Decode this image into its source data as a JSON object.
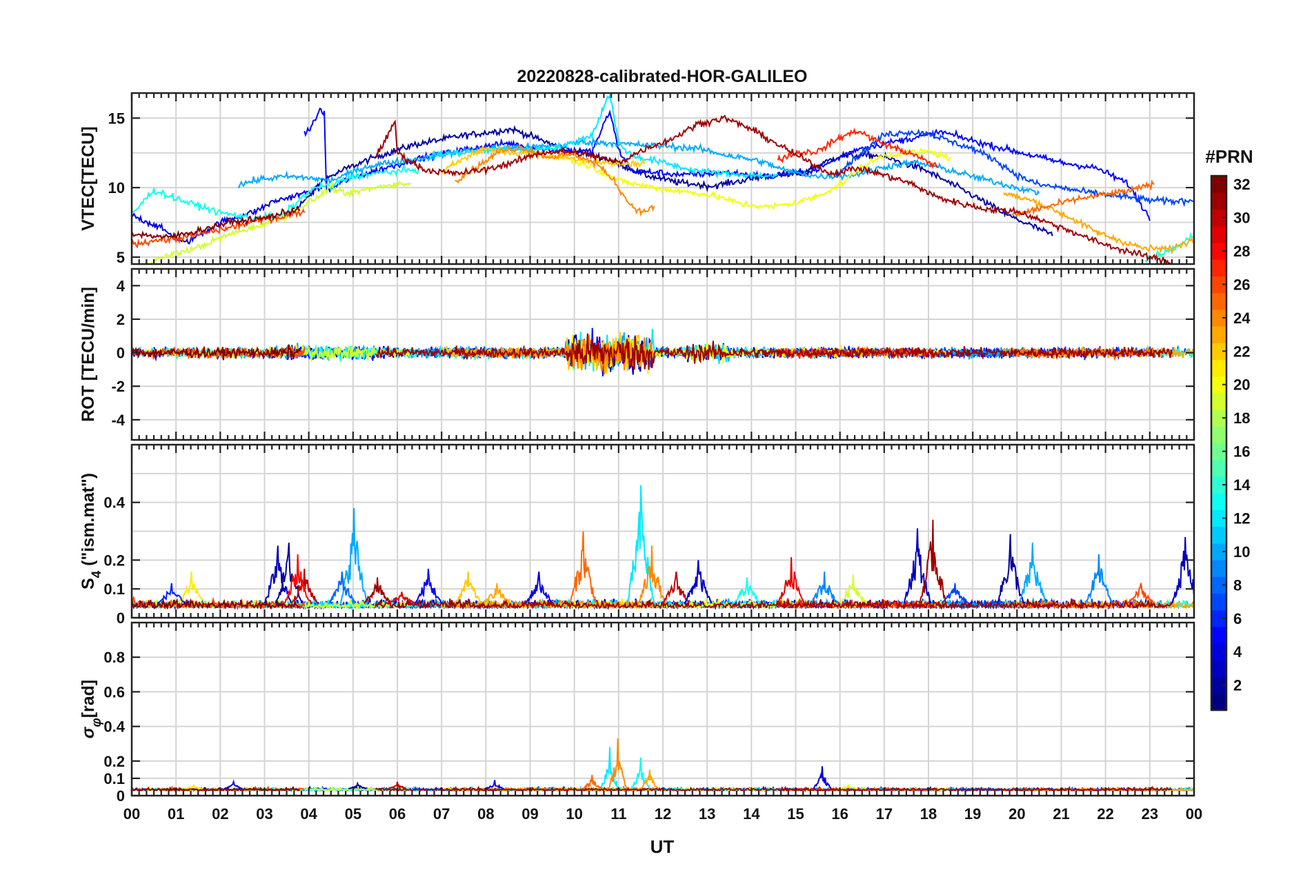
{
  "chart_data": {
    "type": "line",
    "title": "20220828-calibrated-HOR-GALILEO",
    "xlabel": "UT",
    "x_ticks": [
      "00",
      "01",
      "02",
      "03",
      "04",
      "05",
      "06",
      "07",
      "08",
      "09",
      "10",
      "11",
      "12",
      "13",
      "14",
      "15",
      "16",
      "17",
      "18",
      "19",
      "20",
      "21",
      "22",
      "23",
      "00"
    ],
    "xlim": [
      0,
      24
    ],
    "panels": [
      {
        "id": "vtec",
        "ylabel": "VTEC[TECU]",
        "ylim": [
          4.5,
          16.8
        ],
        "yticks": [
          5,
          10,
          15
        ],
        "ytick_labels": [
          "5",
          "10",
          "15"
        ],
        "grid_y": [
          5,
          7.5,
          10,
          12.5,
          15
        ]
      },
      {
        "id": "rot",
        "ylabel": "ROT [TECU/min]",
        "ylim": [
          -5.2,
          5.0
        ],
        "yticks": [
          -4,
          -2,
          0,
          2,
          4
        ],
        "ytick_labels": [
          "-4",
          "-2",
          "0",
          "2",
          "4"
        ],
        "grid_y": [
          -4,
          -2,
          0,
          2,
          4
        ]
      },
      {
        "id": "s4",
        "ylabel_main": "S",
        "ylabel_sub": "4",
        "ylabel_rest": " (\"ism.mat\")",
        "ylim": [
          0,
          0.6
        ],
        "yticks": [
          0,
          0.1,
          0.2,
          0.4
        ],
        "ytick_labels": [
          "0",
          "0.1",
          "0.2",
          "0.4"
        ],
        "grid_y": [
          0.1,
          0.2,
          0.3,
          0.4,
          0.5
        ]
      },
      {
        "id": "sigma",
        "ylabel_main": "σ",
        "ylabel_sub": "φ",
        "ylabel_rest": "[rad]",
        "ylim": [
          0,
          1.0
        ],
        "yticks": [
          0,
          0.1,
          0.2,
          0.4,
          0.6,
          0.8
        ],
        "ytick_labels": [
          "0",
          "0.1",
          "0.2",
          "0.4",
          "0.6",
          "0.8"
        ],
        "grid_y": [
          0.1,
          0.2,
          0.4,
          0.6,
          0.8
        ]
      }
    ],
    "series": [
      {
        "prn": 2,
        "x": [
          3.4,
          4.0,
          4.3,
          4.8,
          5.5,
          6.4,
          7.4,
          8.6,
          9.6,
          10.8,
          11.6,
          12.3,
          13.1,
          14.3,
          15.1,
          16.0,
          16.9,
          17.9,
          18.8,
          19.8,
          20.8
        ],
        "vtec": [
          7.8,
          9.3,
          10.5,
          11.3,
          12.2,
          13.1,
          13.7,
          14.2,
          13.0,
          12.0,
          10.9,
          10.4,
          10.1,
          10.8,
          11.0,
          12.3,
          12.3,
          11.3,
          9.8,
          8.0,
          6.6
        ]
      },
      {
        "prn": 4,
        "x": [
          0.0,
          0.6,
          1.2,
          2.0,
          2.8,
          3.2,
          3.8,
          4.3
        ],
        "vtec": [
          8.0,
          7.2,
          6.0,
          7.5,
          8.3,
          9.0,
          9.5,
          10.0
        ]
      },
      {
        "prn": 5,
        "x": [
          3.9,
          4.1,
          4.25,
          4.35,
          4.4,
          4.8,
          5.6,
          6.5,
          7.6,
          8.5,
          9.4,
          10.4,
          10.8,
          11.0,
          11.3,
          11.8,
          12.5,
          13.4,
          14.4,
          15.4,
          16.4,
          17.4,
          18.3,
          19.2,
          20.1,
          21.0,
          21.8,
          22.5,
          23.0
        ],
        "vtec": [
          13.8,
          14.6,
          15.6,
          15.4,
          9.7,
          10.5,
          11.3,
          12.1,
          12.8,
          13.2,
          12.7,
          12.6,
          15.5,
          12.7,
          11.2,
          11.1,
          10.9,
          11.1,
          10.8,
          11.2,
          12.8,
          13.4,
          14.0,
          13.2,
          12.5,
          11.8,
          11.4,
          10.3,
          7.8
        ]
      },
      {
        "prn": 7,
        "x": [
          15.9,
          16.5,
          17.0,
          17.5,
          18.0,
          18.5,
          19.0,
          19.5,
          20.0,
          20.5,
          21.0,
          21.5,
          22.0,
          22.5,
          23.0,
          23.5,
          24.0
        ],
        "vtec": [
          11.0,
          12.5,
          13.8,
          14.0,
          13.9,
          13.3,
          12.8,
          12.0,
          10.9,
          10.2,
          10.0,
          9.7,
          9.5,
          9.3,
          9.1,
          9.0,
          9.1
        ]
      },
      {
        "prn": 10,
        "x": [
          2.4,
          2.9,
          3.5,
          4.0,
          4.5,
          4.9,
          5.3,
          5.8,
          6.3,
          6.6,
          7.2,
          8.0,
          8.9,
          9.6,
          10.2,
          10.8,
          11.3,
          12.0,
          12.8,
          13.5,
          14.2,
          14.8,
          15.5,
          16.3,
          17.0,
          17.7,
          18.3,
          19.0,
          19.5,
          20.0,
          20.5
        ],
        "vtec": [
          10.2,
          10.6,
          10.8,
          10.7,
          10.5,
          11.0,
          11.5,
          11.8,
          12.0,
          12.1,
          12.5,
          12.8,
          12.9,
          13.0,
          13.3,
          13.2,
          13.1,
          13.0,
          12.8,
          12.3,
          11.9,
          11.2,
          10.8,
          10.9,
          11.5,
          11.8,
          11.4,
          10.8,
          10.4,
          10.0,
          9.6
        ]
      },
      {
        "prn": 12,
        "x": [
          6.7,
          7.5,
          8.3,
          9.0,
          9.8,
          10.4,
          10.8,
          10.9,
          11.0,
          11.3,
          12.0,
          12.6,
          13.3,
          14.0,
          14.6
        ],
        "vtec": [
          12.3,
          12.5,
          12.8,
          12.7,
          13.0,
          13.8,
          16.8,
          15.0,
          13.2,
          12.3,
          11.8,
          11.3,
          11.0,
          10.9,
          10.8
        ]
      },
      {
        "prn": 13,
        "x": [
          0.0,
          0.1,
          0.4,
          0.5,
          1.2,
          2.0,
          2.7,
          3.4,
          4.0,
          4.3,
          4.5,
          4.6,
          5.0,
          5.7,
          6.5
        ],
        "vtec": [
          8.2,
          8.4,
          9.5,
          9.8,
          9.0,
          8.2,
          7.8,
          8.0,
          9.7,
          10.2,
          10.0,
          10.3,
          10.8,
          11.1,
          11.3
        ]
      },
      {
        "prn": 14,
        "x": [
          22.9,
          23.4,
          23.7,
          24.0
        ],
        "vtec": [
          4.8,
          5.4,
          5.9,
          6.6
        ]
      },
      {
        "prn": 19,
        "x": [
          0.3,
          0.9,
          1.5,
          2.1,
          2.8,
          3.5,
          4.2,
          4.5,
          4.8,
          5.2,
          5.8,
          6.3
        ],
        "vtec": [
          4.5,
          5.2,
          5.7,
          6.5,
          7.2,
          8.0,
          9.3,
          10.1,
          9.5,
          9.8,
          10.2,
          10.3
        ]
      },
      {
        "prn": 20,
        "x": [
          9.9,
          10.4,
          11.0,
          11.6,
          12.2,
          12.8,
          13.3,
          13.8,
          14.4,
          15.0,
          15.5,
          16.0,
          16.5,
          17.0,
          17.5,
          18.0,
          18.5
        ],
        "vtec": [
          12.0,
          11.5,
          10.5,
          10.1,
          9.8,
          9.6,
          9.3,
          8.8,
          8.6,
          8.9,
          9.4,
          10.2,
          11.5,
          12.3,
          12.5,
          12.6,
          12.1
        ]
      },
      {
        "prn": 22,
        "x": [
          7.0,
          7.5,
          8.0,
          8.6,
          9.3,
          10.0,
          10.6,
          11.2,
          11.6
        ],
        "vtec": [
          11.0,
          12.2,
          12.8,
          12.5,
          12.3,
          12.1,
          11.8,
          11.7,
          11.8
        ]
      },
      {
        "prn": 23,
        "x": [
          19.7,
          20.4,
          21.1,
          21.8,
          22.4,
          22.9,
          23.5,
          24.0
        ],
        "vtec": [
          9.6,
          9.0,
          8.0,
          6.8,
          6.1,
          5.6,
          5.6,
          6.3
        ]
      },
      {
        "prn": 24,
        "x": [
          7.3,
          7.8,
          8.3,
          8.8,
          9.4,
          10.0,
          10.5,
          10.9,
          11.2,
          11.5,
          11.8
        ],
        "vtec": [
          10.5,
          11.5,
          12.6,
          12.9,
          12.2,
          12.4,
          11.7,
          10.5,
          9.0,
          8.2,
          8.6
        ]
      },
      {
        "prn": 25,
        "x": [
          19.9,
          20.4,
          20.9,
          21.4,
          22.0,
          22.6,
          23.1
        ],
        "vtec": [
          8.0,
          8.4,
          8.8,
          9.2,
          9.5,
          9.8,
          10.3
        ]
      },
      {
        "prn": 26,
        "x": [
          0.0,
          0.5,
          1.0,
          1.6,
          2.2,
          2.8,
          3.4,
          3.9
        ],
        "vtec": [
          5.9,
          6.2,
          6.3,
          6.7,
          7.1,
          7.6,
          7.9,
          8.3
        ]
      },
      {
        "prn": 27,
        "x": [
          14.6,
          15.0,
          15.5,
          16.0,
          16.4,
          16.8,
          17.2,
          17.7,
          18.2
        ],
        "vtec": [
          12.0,
          12.5,
          12.6,
          13.6,
          14.1,
          13.4,
          12.9,
          12.3,
          11.5
        ]
      },
      {
        "prn": 31,
        "x": [
          5.5,
          5.8,
          5.95,
          6.0,
          6.6,
          7.3,
          8.0,
          8.6,
          9.2,
          9.8,
          10.4,
          11.0,
          11.6,
          12.2,
          12.8,
          13.4,
          14.0,
          14.6,
          15.2,
          15.8,
          16.4,
          17.0,
          17.6,
          18.2,
          18.8,
          19.4,
          20.0,
          20.6,
          21.2,
          21.8,
          22.4,
          23.0,
          23.5
        ],
        "vtec": [
          12.2,
          13.8,
          14.8,
          12.5,
          11.3,
          11.0,
          11.3,
          11.8,
          12.5,
          12.6,
          12.3,
          11.8,
          12.8,
          13.5,
          14.6,
          15.0,
          14.2,
          13.1,
          12.0,
          11.0,
          11.4,
          10.9,
          10.3,
          9.3,
          8.8,
          8.4,
          8.3,
          7.6,
          6.9,
          6.1,
          5.5,
          5.0,
          4.6
        ]
      },
      {
        "prn": 32,
        "x": [
          0.0,
          0.8,
          1.5,
          2.2,
          3.0,
          3.8
        ],
        "vtec": [
          6.7,
          6.4,
          6.9,
          7.5,
          7.8,
          8.5
        ]
      }
    ],
    "s4_events": [
      {
        "prn": 3,
        "t": 3.3,
        "peak": 0.25
      },
      {
        "prn": 2,
        "t": 3.55,
        "peak": 0.26
      },
      {
        "prn": 30,
        "t": 3.9,
        "peak": 0.17
      },
      {
        "prn": 28,
        "t": 3.75,
        "peak": 0.22
      },
      {
        "prn": 10,
        "t": 5.02,
        "peak": 0.38
      },
      {
        "prn": 8,
        "t": 4.75,
        "peak": 0.16
      },
      {
        "prn": 31,
        "t": 5.55,
        "peak": 0.14
      },
      {
        "prn": 29,
        "t": 6.1,
        "peak": 0.09
      },
      {
        "prn": 5,
        "t": 6.7,
        "peak": 0.17
      },
      {
        "prn": 21,
        "t": 1.35,
        "peak": 0.16
      },
      {
        "prn": 6,
        "t": 0.9,
        "peak": 0.12
      },
      {
        "prn": 22,
        "t": 7.6,
        "peak": 0.16
      },
      {
        "prn": 23,
        "t": 8.25,
        "peak": 0.12
      },
      {
        "prn": 4,
        "t": 9.2,
        "peak": 0.16
      },
      {
        "prn": 25,
        "t": 10.2,
        "peak": 0.3
      },
      {
        "prn": 12,
        "t": 11.5,
        "peak": 0.46
      },
      {
        "prn": 24,
        "t": 11.75,
        "peak": 0.25
      },
      {
        "prn": 30,
        "t": 12.3,
        "peak": 0.16
      },
      {
        "prn": 3,
        "t": 12.8,
        "peak": 0.2
      },
      {
        "prn": 13,
        "t": 13.9,
        "peak": 0.14
      },
      {
        "prn": 29,
        "t": 14.9,
        "peak": 0.21
      },
      {
        "prn": 9,
        "t": 15.65,
        "peak": 0.16
      },
      {
        "prn": 19,
        "t": 16.3,
        "peak": 0.15
      },
      {
        "prn": 3,
        "t": 17.75,
        "peak": 0.31
      },
      {
        "prn": 31,
        "t": 18.1,
        "peak": 0.34
      },
      {
        "prn": 7,
        "t": 18.6,
        "peak": 0.12
      },
      {
        "prn": 2,
        "t": 19.85,
        "peak": 0.29
      },
      {
        "prn": 10,
        "t": 20.35,
        "peak": 0.26
      },
      {
        "prn": 9,
        "t": 21.85,
        "peak": 0.22
      },
      {
        "prn": 26,
        "t": 22.8,
        "peak": 0.12
      },
      {
        "prn": 3,
        "t": 23.8,
        "peak": 0.28
      }
    ],
    "sigma_events": [
      {
        "prn": 12,
        "t": 10.8,
        "peak": 0.28
      },
      {
        "prn": 24,
        "t": 10.98,
        "peak": 0.33
      },
      {
        "prn": 25,
        "t": 10.4,
        "peak": 0.12
      },
      {
        "prn": 13,
        "t": 11.5,
        "peak": 0.22
      },
      {
        "prn": 23,
        "t": 11.7,
        "peak": 0.15
      },
      {
        "prn": 4,
        "t": 15.6,
        "peak": 0.17
      },
      {
        "prn": 20,
        "t": 16.2,
        "peak": 0.06
      },
      {
        "prn": 4,
        "t": 2.3,
        "peak": 0.08
      },
      {
        "prn": 30,
        "t": 6.0,
        "peak": 0.08
      },
      {
        "prn": 5,
        "t": 8.2,
        "peak": 0.09
      },
      {
        "prn": 2,
        "t": 5.1,
        "peak": 0.07
      },
      {
        "prn": 21,
        "t": 1.4,
        "peak": 0.06
      }
    ],
    "colorbar": {
      "label": "#PRN",
      "range": [
        1,
        32
      ],
      "ticks": [
        "2",
        "4",
        "6",
        "8",
        "10",
        "12",
        "14",
        "16",
        "18",
        "20",
        "22",
        "24",
        "26",
        "28",
        "30",
        "32"
      ],
      "colormap": "jet"
    }
  }
}
